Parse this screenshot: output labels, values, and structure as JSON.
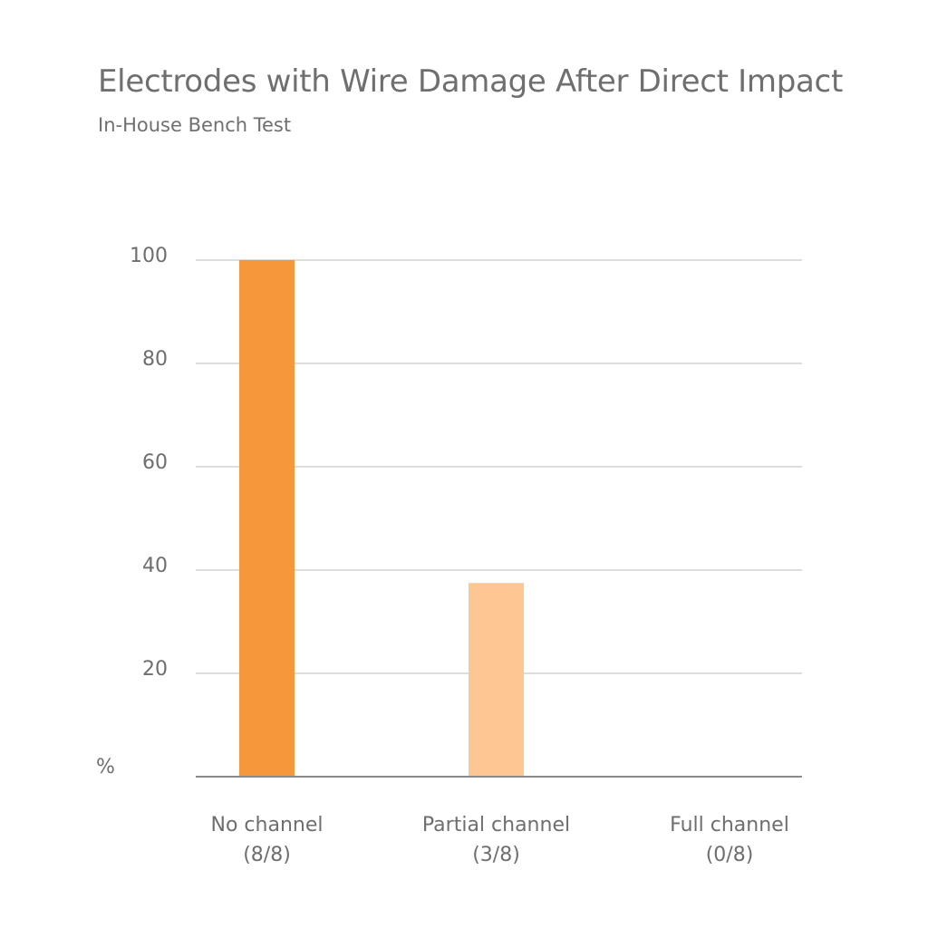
{
  "chart_data": {
    "type": "bar",
    "title": "Electrodes with Wire Damage After Direct Impact",
    "subtitle": "In-House Bench Test",
    "ylabel": "%",
    "xlabel": "",
    "ylim": [
      0,
      100
    ],
    "yticks": [
      20,
      40,
      60,
      80,
      100
    ],
    "grid": true,
    "categories": [
      [
        "No channel",
        "(8/8)"
      ],
      [
        "Partial channel",
        "(3/8)"
      ],
      [
        "Full channel",
        "(0/8)"
      ]
    ],
    "values": [
      100,
      37.5,
      0
    ],
    "colors": [
      "#f5973a",
      "#fdc794",
      "#f5973a"
    ]
  }
}
